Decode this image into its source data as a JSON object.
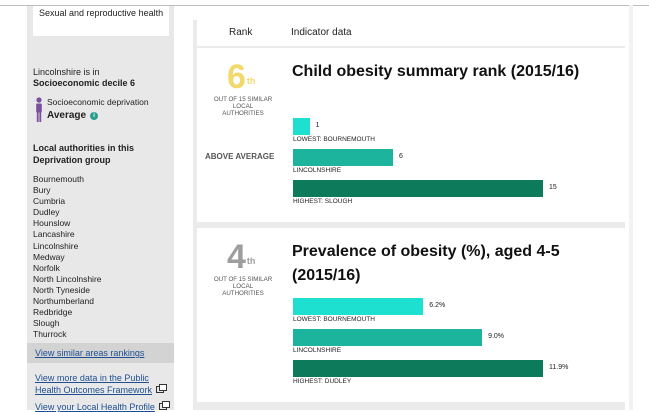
{
  "sidebar": {
    "topic": "Sexual and reproductive health",
    "decile_line1": "Lincolnshire is in",
    "decile_line2": "Socioeconomic decile 6",
    "deprivation_label": "Socioeconomic deprivation",
    "deprivation_value": "Average",
    "la_heading": "Local authorities in this Deprivation group",
    "authorities": [
      "Bournemouth",
      "Bury",
      "Cumbria",
      "Dudley",
      "Hounslow",
      "Lancashire",
      "Lincolnshire",
      "Medway",
      "Norfolk",
      "North Lincolnshire",
      "North Tyneside",
      "Northumberland",
      "Redbridge",
      "Slough",
      "Thurrock"
    ],
    "view_similar": "View similar areas rankings",
    "more_data_link": "View more data in the Public Health Outcomes Framework",
    "profile_link": "View your Local Health Profile"
  },
  "header": {
    "rank": "Rank",
    "indicator": "Indicator data"
  },
  "colors": {
    "light_bar": "#1ee0d0",
    "mid_bar": "#1cb49c",
    "dark_bar": "#0d7a5c",
    "rank_gold": "#f2d96b"
  },
  "indicators": [
    {
      "rank": "6",
      "rank_suffix": "th",
      "rank_sub": "OUT OF 15 SIMILAR LOCAL AUTHORITIES",
      "band": "ABOVE AVERAGE",
      "title": "Child obesity summary rank (2015/16)",
      "bars": [
        {
          "label": "LOWEST: BOURNEMOUTH",
          "value": 1,
          "display": "1"
        },
        {
          "label": "LINCOLNSHIRE",
          "value": 6,
          "display": "6"
        },
        {
          "label": "HIGHEST: SLOUGH",
          "value": 15,
          "display": "15"
        }
      ],
      "max": 15
    },
    {
      "rank": "4",
      "rank_suffix": "th",
      "rank_sub": "OUT OF 15 SIMILAR LOCAL AUTHORITIES",
      "band": "",
      "title": "Prevalence of obesity (%), aged 4-5 (2015/16)",
      "bars": [
        {
          "label": "LOWEST: BOURNEMOUTH",
          "value": 6.2,
          "display": "6.2%"
        },
        {
          "label": "LINCOLNSHIRE",
          "value": 9.0,
          "display": "9.0%"
        },
        {
          "label": "HIGHEST: DUDLEY",
          "value": 11.9,
          "display": "11.9%"
        }
      ],
      "max": 11.9
    }
  ]
}
